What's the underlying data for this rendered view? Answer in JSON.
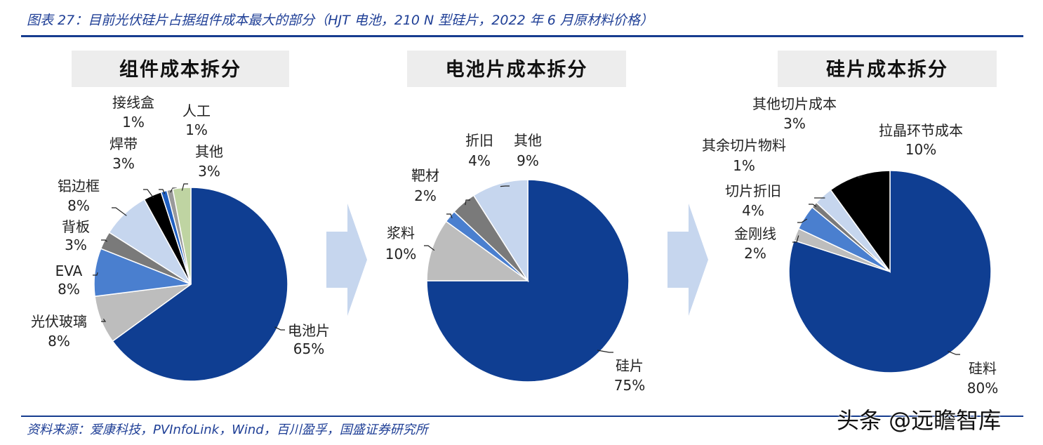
{
  "figure_title": "图表 27：目前光伏硅片占据组件成本最大的部分（HJT 电池，210 N 型硅片，2022 年 6 月原材料价格）",
  "source": "资料来源：爱康科技，PVInfoLink，Wind，百川盈孚，国盛证券研究所",
  "watermark": "头条 @远瞻智库",
  "chart_data": [
    {
      "type": "pie",
      "title": "组件成本拆分",
      "slices": [
        {
          "name": "电池片",
          "value": 65,
          "label": "65%",
          "color": "#0f3e92"
        },
        {
          "name": "光伏玻璃",
          "value": 8,
          "label": "8%",
          "color": "#bdbdbd"
        },
        {
          "name": "EVA",
          "value": 8,
          "label": "8%",
          "color": "#4a7fcf"
        },
        {
          "name": "背板",
          "value": 3,
          "label": "3%",
          "color": "#7a7a7a"
        },
        {
          "name": "铝边框",
          "value": 8,
          "label": "8%",
          "color": "#c6d6ee"
        },
        {
          "name": "焊带",
          "value": 3,
          "label": "3%",
          "color": "#000000"
        },
        {
          "name": "接线盒",
          "value": 1,
          "label": "1%",
          "color": "#1f5fc2"
        },
        {
          "name": "人工",
          "value": 1,
          "label": "1%",
          "color": "#9a9a9a"
        },
        {
          "name": "其他",
          "value": 3,
          "label": "3%",
          "color": "#bfd4a2"
        }
      ]
    },
    {
      "type": "pie",
      "title": "电池片成本拆分",
      "slices": [
        {
          "name": "硅片",
          "value": 75,
          "label": "75%",
          "color": "#0f3e92"
        },
        {
          "name": "浆料",
          "value": 10,
          "label": "10%",
          "color": "#bdbdbd"
        },
        {
          "name": "靶材",
          "value": 2,
          "label": "2%",
          "color": "#4a7fcf"
        },
        {
          "name": "折旧",
          "value": 4,
          "label": "4%",
          "color": "#7a7a7a"
        },
        {
          "name": "其他",
          "value": 9,
          "label": "9%",
          "color": "#c6d6ee"
        }
      ]
    },
    {
      "type": "pie",
      "title": "硅片成本拆分",
      "slices": [
        {
          "name": "硅料",
          "value": 80,
          "label": "80%",
          "color": "#0f3e92"
        },
        {
          "name": "金刚线",
          "value": 2,
          "label": "2%",
          "color": "#bdbdbd"
        },
        {
          "name": "切片折旧",
          "value": 4,
          "label": "4%",
          "color": "#4a7fcf"
        },
        {
          "name": "其余切片物料",
          "value": 1,
          "label": "1%",
          "color": "#7a7a7a"
        },
        {
          "name": "其他切片成本",
          "value": 3,
          "label": "3%",
          "color": "#c6d6ee"
        },
        {
          "name": "拉晶环节成本",
          "value": 10,
          "label": "10%",
          "color": "#000000"
        }
      ]
    }
  ]
}
